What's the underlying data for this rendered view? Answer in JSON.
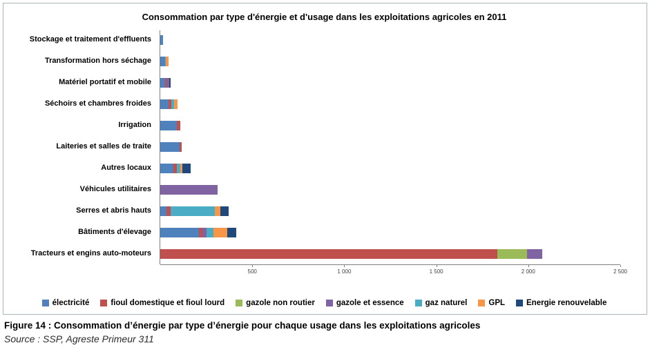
{
  "chart": {
    "title": "Consommation par type d'énergie et d'usage dans les exploitations agricoles en 2011"
  },
  "caption": {
    "figure": "Figure 14 : Consommation d’énergie par type d’énergie pour chaque usage dans les exploitations agricoles",
    "source": "Source : SSP, Agreste Primeur 311"
  },
  "chart_data": {
    "type": "bar",
    "orientation": "horizontal",
    "stacked": true,
    "title": "Consommation par type d'énergie et d'usage dans les exploitations agricoles en 2011",
    "categories": [
      "Stockage et traitement d'effluents",
      "Transformation hors séchage",
      "Matériel portatif et mobile",
      "Séchoirs et chambres froides",
      "Irrigation",
      "Laiteries et salles de traite",
      "Autres locaux",
      "Véhicules utilitaires",
      "Serres et abris hauts",
      "Bâtiments d'élevage",
      "Tracteurs et engins auto-moteurs"
    ],
    "series": [
      {
        "name": "électricité",
        "color": "#4F81BD",
        "values": [
          15,
          25,
          25,
          45,
          90,
          105,
          70,
          0,
          35,
          210,
          0
        ]
      },
      {
        "name": "fioul domestique et fioul lourd",
        "color": "#C0504D",
        "values": [
          0,
          0,
          10,
          15,
          20,
          10,
          20,
          0,
          20,
          20,
          1830
        ]
      },
      {
        "name": "gazole non routier",
        "color": "#9BBB59",
        "values": [
          0,
          0,
          0,
          0,
          0,
          0,
          0,
          0,
          0,
          0,
          165
        ]
      },
      {
        "name": "gazole et essence",
        "color": "#8064A2",
        "values": [
          0,
          0,
          15,
          0,
          0,
          0,
          0,
          310,
          0,
          20,
          80
        ]
      },
      {
        "name": "gaz naturel",
        "color": "#4BACC6",
        "values": [
          0,
          5,
          0,
          15,
          0,
          0,
          20,
          0,
          240,
          40,
          0
        ]
      },
      {
        "name": "GPL",
        "color": "#F79646",
        "values": [
          0,
          15,
          0,
          20,
          0,
          0,
          10,
          0,
          30,
          75,
          0
        ]
      },
      {
        "name": "Energie renouvelable",
        "color": "#1F497D",
        "values": [
          0,
          0,
          5,
          0,
          0,
          0,
          45,
          0,
          45,
          50,
          0
        ]
      }
    ],
    "xlim": [
      0,
      2500
    ],
    "xticks": [
      {
        "value": 500,
        "label": "500"
      },
      {
        "value": 1000,
        "label": "1 000"
      },
      {
        "value": 1500,
        "label": "1 500"
      },
      {
        "value": 2000,
        "label": "2 000"
      },
      {
        "value": 2500,
        "label": "2 500"
      }
    ],
    "legend_position": "bottom",
    "grid": false
  }
}
